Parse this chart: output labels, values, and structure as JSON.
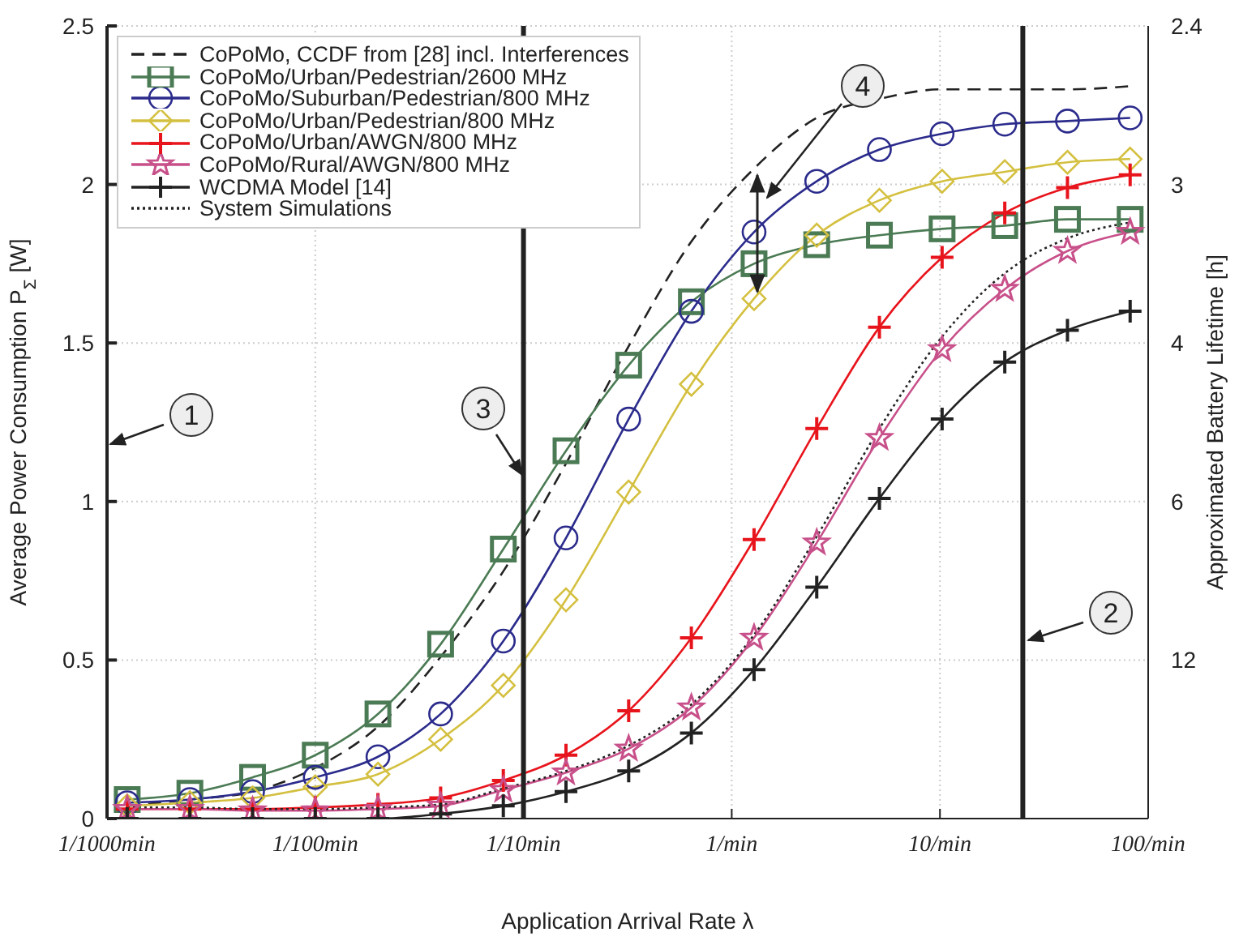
{
  "chart_data": {
    "type": "line",
    "xlabel": "Application Arrival Rate λ",
    "ylabel": "Average Power Consumption P$_{Σ}$ [W]",
    "y2label": "Approximated Battery Lifetime [h]",
    "log": "x",
    "grid": true,
    "legend": "top left",
    "x": [
      0.00125,
      0.0025,
      0.005,
      0.01,
      0.02,
      0.04,
      0.08,
      0.16,
      0.32,
      0.64,
      1.28,
      2.56,
      5.12,
      10.24,
      20.48,
      40.96,
      81.92
    ],
    "xlim": [
      0.001,
      100
    ],
    "xticks": [
      {
        "value": 0.001,
        "label": "1/1000min"
      },
      {
        "value": 0.01,
        "label": "1/100min"
      },
      {
        "value": 0.1,
        "label": "1/10min"
      },
      {
        "value": 1,
        "label": "1/min"
      },
      {
        "value": 10,
        "label": "10/min"
      },
      {
        "value": 100,
        "label": "100/min"
      }
    ],
    "ylim": [
      0,
      2.5
    ],
    "yticks": [
      0,
      0.5,
      1,
      1.5,
      2,
      2.5
    ],
    "ref_lines": [
      {
        "axis": "x",
        "value": 0.1,
        "color": "#222222"
      },
      {
        "axis": "x",
        "value": 25,
        "color": "#222222"
      }
    ],
    "annotations": [
      "1",
      "2",
      "3",
      "4",
      "12",
      "6",
      "4",
      "3",
      "2.4"
    ],
    "series": [
      {
        "name": "CoPoMo, CCDF from [28] incl. Interferences",
        "color": "#222222",
        "line_style": "dashed",
        "marker": "none",
        "values": [
          0.04,
          0.06,
          0.085,
          0.16,
          0.29,
          0.51,
          0.78,
          1.12,
          1.49,
          1.82,
          2.05,
          2.21,
          2.27,
          2.3,
          2.3,
          2.3,
          2.31
        ]
      },
      {
        "name": "CoPoMo/Urban/Pedestrian/2600 MHz",
        "color": "#4b7b54",
        "line_style": "solid",
        "marker": "square",
        "values": [
          0.06,
          0.08,
          0.13,
          0.2,
          0.33,
          0.55,
          0.85,
          1.16,
          1.43,
          1.63,
          1.75,
          1.81,
          1.84,
          1.86,
          1.87,
          1.89,
          1.89
        ]
      },
      {
        "name": "CoPoMo/Suburban/Pedestrian/800 MHz",
        "color": "#2b2b8c",
        "line_style": "solid",
        "marker": "circle",
        "values": [
          0.05,
          0.06,
          0.085,
          0.13,
          0.195,
          0.33,
          0.56,
          0.885,
          1.26,
          1.6,
          1.85,
          2.01,
          2.11,
          2.16,
          2.19,
          2.2,
          2.21
        ]
      },
      {
        "name": "CoPoMo/Urban/Pedestrian/800 MHz",
        "color": "#d4c040",
        "line_style": "solid",
        "marker": "diamond",
        "values": [
          0.04,
          0.05,
          0.065,
          0.1,
          0.14,
          0.25,
          0.42,
          0.69,
          1.03,
          1.37,
          1.64,
          1.84,
          1.95,
          2.01,
          2.04,
          2.07,
          2.08
        ]
      },
      {
        "name": "CoPoMo/Urban/AWGN/800 MHz",
        "color": "#e8141c",
        "line_style": "solid",
        "marker": "cross",
        "values": [
          0.03,
          0.03,
          0.03,
          0.035,
          0.045,
          0.065,
          0.12,
          0.2,
          0.34,
          0.57,
          0.88,
          1.23,
          1.55,
          1.77,
          1.91,
          1.99,
          2.03
        ]
      },
      {
        "name": "CoPoMo/Rural/AWGN/800 MHz",
        "color": "#c8508a",
        "line_style": "solid",
        "marker": "star",
        "values": [
          0.03,
          0.03,
          0.025,
          0.025,
          0.03,
          0.04,
          0.09,
          0.145,
          0.22,
          0.35,
          0.57,
          0.87,
          1.2,
          1.48,
          1.67,
          1.79,
          1.85
        ]
      },
      {
        "name": "WCDMA Model [14]",
        "color": "#222222",
        "line_style": "solid",
        "marker": "cross",
        "values": [
          0,
          0,
          0,
          0,
          0,
          0.015,
          0.04,
          0.085,
          0.15,
          0.27,
          0.47,
          0.73,
          1.01,
          1.26,
          1.44,
          1.54,
          1.6
        ]
      },
      {
        "name": "System Simulations",
        "color": "#222222",
        "line_style": "dotted",
        "marker": "none",
        "values": [
          0.035,
          0.035,
          0.03,
          0.03,
          0.035,
          0.045,
          0.095,
          0.15,
          0.23,
          0.36,
          0.58,
          0.89,
          1.23,
          1.52,
          1.72,
          1.83,
          1.88
        ]
      }
    ]
  }
}
